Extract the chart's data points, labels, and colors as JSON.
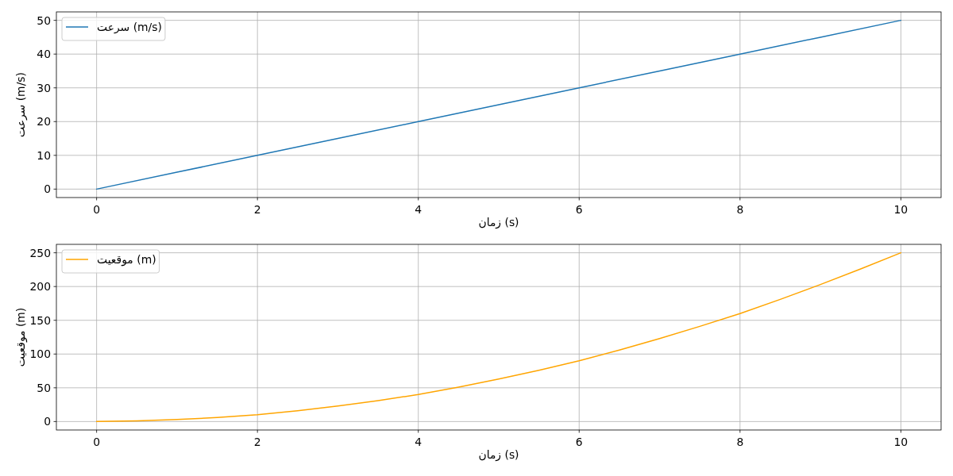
{
  "chart_data": [
    {
      "type": "line",
      "x": [
        0,
        1,
        2,
        3,
        4,
        5,
        6,
        7,
        8,
        9,
        10
      ],
      "series": [
        {
          "name": "سرعت (m/s)",
          "color": "#1f77b4",
          "values": [
            0,
            5,
            10,
            15,
            20,
            25,
            30,
            35,
            40,
            45,
            50
          ]
        }
      ],
      "xlabel": "زمان (s)",
      "ylabel": "سرعت (m/s)",
      "xlim": [
        -0.5,
        10.5
      ],
      "xticks": [
        0,
        2,
        4,
        6,
        8,
        10
      ],
      "ylim": [
        -2.5,
        52.5
      ],
      "yticks": [
        0,
        10,
        20,
        30,
        40,
        50
      ],
      "grid": true,
      "legend": "top left"
    },
    {
      "type": "line",
      "x": [
        0,
        0.5,
        1,
        1.5,
        2,
        2.5,
        3,
        3.5,
        4,
        4.5,
        5,
        5.5,
        6,
        6.5,
        7,
        7.5,
        8,
        8.5,
        9,
        9.5,
        10
      ],
      "series": [
        {
          "name": "موقعیت (m)",
          "color": "#ffa500",
          "values": [
            0,
            1,
            3,
            6,
            10,
            16,
            23,
            31,
            40,
            51,
            63,
            76,
            90,
            106,
            123,
            141,
            160,
            181,
            203,
            226,
            250
          ]
        }
      ],
      "xlabel": "زمان (s)",
      "ylabel": "موقعیت (m)",
      "xlim": [
        -0.5,
        10.5
      ],
      "xticks": [
        0,
        2,
        4,
        6,
        8,
        10
      ],
      "ylim": [
        -12.5,
        262.5
      ],
      "yticks": [
        0,
        50,
        100,
        150,
        200,
        250
      ],
      "grid": true,
      "legend": "top left"
    }
  ]
}
